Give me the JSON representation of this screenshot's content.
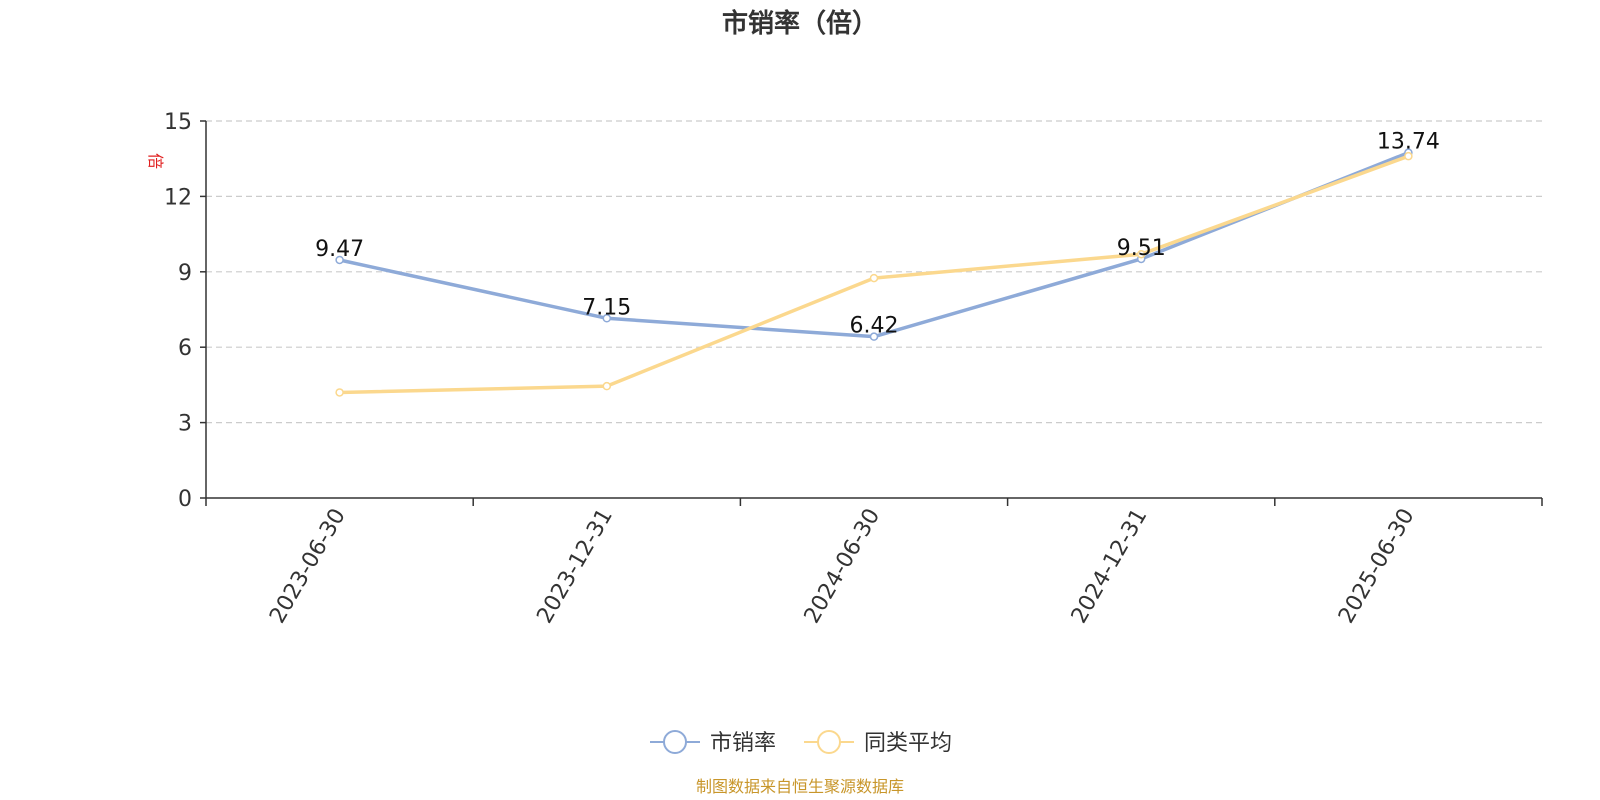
{
  "chart_data": {
    "type": "line",
    "title": "市销率（倍）",
    "ylabel": "倍",
    "ylim": [
      0,
      15
    ],
    "yticks": [
      0,
      3,
      6,
      9,
      12,
      15
    ],
    "categories": [
      "2023-06-30",
      "2023-12-31",
      "2024-06-30",
      "2024-12-31",
      "2025-06-30"
    ],
    "series": [
      {
        "name": "市销率",
        "color": "#8eaad8",
        "values": [
          9.47,
          7.15,
          6.42,
          9.51,
          13.74
        ],
        "labels": [
          "9.47",
          "7.15",
          "6.42",
          "9.51",
          "13.74"
        ]
      },
      {
        "name": "同类平均",
        "color": "#fbd88e",
        "values": [
          4.2,
          4.45,
          8.75,
          9.7,
          13.6
        ]
      }
    ],
    "grid": true,
    "legend_position": "bottom"
  },
  "source_note": "制图数据来自恒生聚源数据库"
}
